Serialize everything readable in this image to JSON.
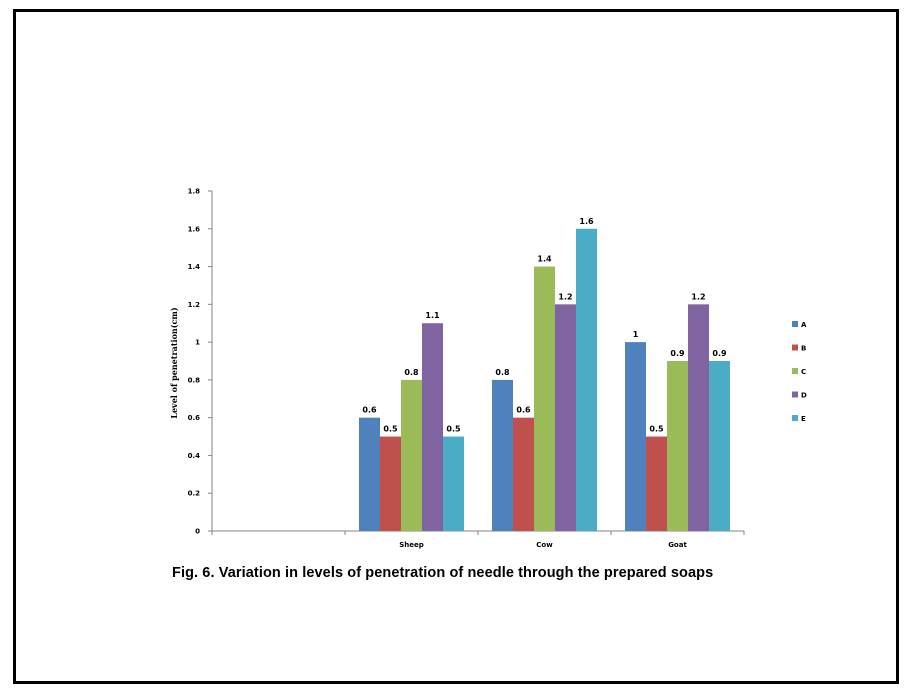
{
  "caption": "Fig. 6. Variation in levels of penetration of needle through the prepared soaps",
  "chart_data": {
    "type": "bar",
    "categories": [
      "",
      "Sheep",
      "Cow",
      "Goat"
    ],
    "series": [
      {
        "name": "A",
        "color": "#4f81bd",
        "values": [
          null,
          0.6,
          0.8,
          1.0
        ],
        "labels": [
          "",
          "0.6",
          "0.8",
          "1"
        ]
      },
      {
        "name": "B",
        "color": "#c0504d",
        "values": [
          null,
          0.5,
          0.6,
          0.5
        ],
        "labels": [
          "",
          "0.5",
          "0.6",
          "0.5"
        ]
      },
      {
        "name": "C",
        "color": "#9bbb59",
        "values": [
          null,
          0.8,
          1.4,
          0.9
        ],
        "labels": [
          "",
          "0.8",
          "1.4",
          "0.9"
        ]
      },
      {
        "name": "D",
        "color": "#8064a2",
        "values": [
          null,
          1.1,
          1.2,
          1.2
        ],
        "labels": [
          "",
          "1.1",
          "1.2",
          "1.2"
        ]
      },
      {
        "name": "E",
        "color": "#4bacc6",
        "values": [
          null,
          0.5,
          1.6,
          0.9
        ],
        "labels": [
          "",
          "0.5",
          "1.6",
          "0.9"
        ]
      }
    ],
    "yticks": [
      "0",
      "0.2",
      "0.4",
      "0.6",
      "0.8",
      "1",
      "1.2",
      "1.4",
      "1.6",
      "1.8"
    ],
    "ylim": [
      0,
      1.8
    ],
    "ylabel": "Level of penetration(cm)",
    "xlabel": "",
    "grid": false,
    "legend": "right"
  }
}
